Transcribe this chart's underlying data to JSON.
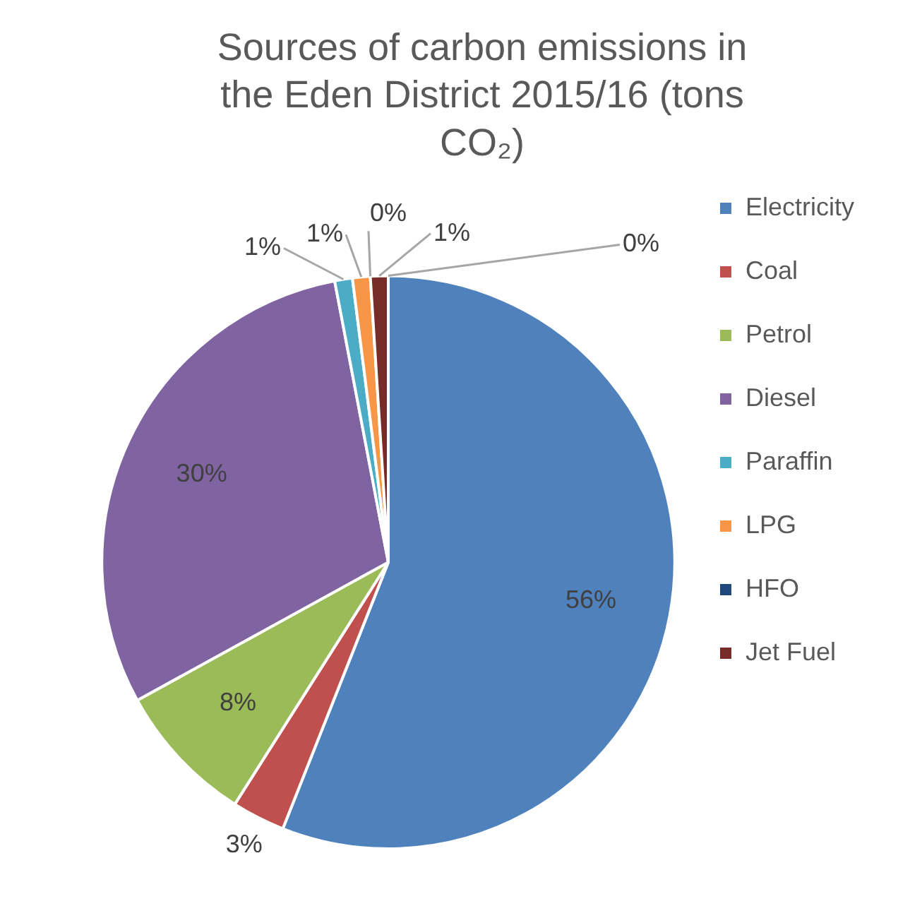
{
  "chart_data": {
    "type": "pie",
    "title": "Sources of carbon emissions in the Eden District 2015/16 (tons CO₂)",
    "categories": [
      "Electricity",
      "Coal",
      "Petrol",
      "Diesel",
      "Paraffin",
      "LPG",
      "HFO",
      "Jet Fuel",
      null
    ],
    "values": [
      56,
      3,
      8,
      30,
      1,
      1,
      0,
      1,
      0
    ],
    "value_labels": [
      "56%",
      "3%",
      "8%",
      "30%",
      "1%",
      "1%",
      "0%",
      "1%",
      "0%"
    ],
    "colors": [
      "#4f81bd",
      "#c0504d",
      "#9bbb59",
      "#8064a2",
      "#4bacc6",
      "#f79646",
      "#1f497d",
      "#772c2a",
      "#a5b9d9"
    ],
    "legend": "right"
  }
}
